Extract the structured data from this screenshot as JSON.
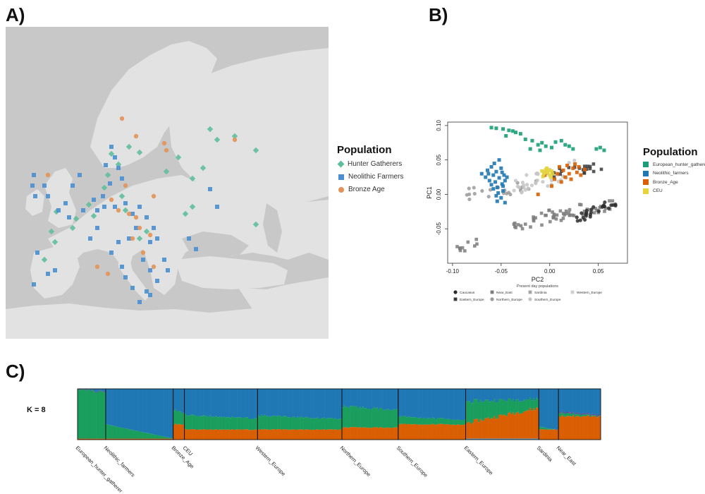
{
  "panels": {
    "a_label": "A)",
    "b_label": "B)",
    "c_label": "C)"
  },
  "map": {
    "legend_title": "Population",
    "legend": [
      {
        "name": "Hunter Gatherers",
        "color": "#5fbf9b",
        "shape": "diamond"
      },
      {
        "name": "Neolithic Farmers",
        "color": "#4a8fd1",
        "shape": "square"
      },
      {
        "name": "Bronze Age",
        "color": "#e39358",
        "shape": "circle"
      }
    ],
    "colors": {
      "sea": "#c8c8c8",
      "land": "#e2e2e2"
    }
  },
  "chart_data": [
    {
      "type": "scatter",
      "title": "",
      "xlabel": "PC2",
      "xsublabel": "Present day populations",
      "ylabel": "PC1",
      "xlim": [
        -0.105,
        0.08
      ],
      "ylim": [
        -0.1,
        0.105
      ],
      "xticks": [
        -0.1,
        -0.05,
        0.0,
        0.05
      ],
      "xtick_labels": [
        "-0.10",
        "-0.05",
        "0.00",
        "0.05"
      ],
      "yticks": [
        -0.05,
        0.0,
        0.05,
        0.1
      ],
      "ytick_labels": [
        "-0.05",
        "0.00",
        "0.05",
        "0.10"
      ],
      "legend_title": "Population",
      "legend_position": "right",
      "series": [
        {
          "name": "European_hunter_gatherers",
          "color": "#1a9e77",
          "points": [
            [
              -0.06,
              0.097
            ],
            [
              -0.055,
              0.096
            ],
            [
              -0.048,
              0.095
            ],
            [
              -0.042,
              0.093
            ],
            [
              -0.038,
              0.092
            ],
            [
              -0.035,
              0.09
            ],
            [
              -0.03,
              0.088
            ],
            [
              -0.045,
              0.085
            ],
            [
              -0.025,
              0.08
            ],
            [
              -0.018,
              0.078
            ],
            [
              -0.012,
              0.072
            ],
            [
              -0.008,
              0.075
            ],
            [
              -0.004,
              0.07
            ],
            [
              0.002,
              0.068
            ],
            [
              0.006,
              0.076
            ],
            [
              0.012,
              0.078
            ],
            [
              0.016,
              0.072
            ],
            [
              0.02,
              0.07
            ],
            [
              0.024,
              0.066
            ],
            [
              0.048,
              0.066
            ],
            [
              0.052,
              0.068
            ],
            [
              0.056,
              0.064
            ],
            [
              -0.02,
              0.066
            ],
            [
              -0.01,
              0.064
            ]
          ]
        },
        {
          "name": "Neolithic_farmers",
          "color": "#1f78b4",
          "points": [
            [
              -0.07,
              0.03
            ],
            [
              -0.066,
              0.025
            ],
            [
              -0.064,
              0.035
            ],
            [
              -0.062,
              0.02
            ],
            [
              -0.06,
              0.04
            ],
            [
              -0.058,
              0.028
            ],
            [
              -0.056,
              0.018
            ],
            [
              -0.055,
              0.033
            ],
            [
              -0.054,
              0.01
            ],
            [
              -0.052,
              0.024
            ],
            [
              -0.05,
              0.038
            ],
            [
              -0.049,
              0.015
            ],
            [
              -0.048,
              0.005
            ],
            [
              -0.047,
              0.028
            ],
            [
              -0.046,
              0.02
            ],
            [
              -0.058,
              0.008
            ],
            [
              -0.06,
              0.014
            ],
            [
              -0.053,
              0.002
            ],
            [
              -0.05,
              -0.005
            ],
            [
              -0.054,
              -0.01
            ],
            [
              -0.046,
              -0.012
            ],
            [
              -0.057,
              0.045
            ],
            [
              -0.052,
              0.05
            ],
            [
              -0.063,
              0.03
            ],
            [
              -0.049,
              0.032
            ],
            [
              -0.055,
              -0.002
            ],
            [
              -0.048,
              0.012
            ],
            [
              -0.044,
              0.025
            ]
          ]
        },
        {
          "name": "Bronze_Age",
          "color": "#d95f02",
          "points": [
            [
              0.01,
              0.04
            ],
            [
              0.014,
              0.035
            ],
            [
              0.018,
              0.042
            ],
            [
              0.02,
              0.03
            ],
            [
              0.024,
              0.038
            ],
            [
              0.028,
              0.032
            ],
            [
              0.03,
              0.04
            ],
            [
              0.032,
              0.028
            ],
            [
              0.016,
              0.025
            ],
            [
              0.022,
              0.022
            ],
            [
              0.008,
              0.03
            ],
            [
              0.012,
              0.018
            ],
            [
              0.005,
              0.022
            ],
            [
              0.036,
              0.036
            ],
            [
              0.026,
              0.044
            ],
            [
              -0.005,
              0.028
            ],
            [
              -0.012,
              0.0
            ],
            [
              0.002,
              0.012
            ]
          ]
        },
        {
          "name": "CEU",
          "color": "#e6d43a",
          "points": [
            [
              -0.008,
              0.034
            ],
            [
              -0.006,
              0.03
            ],
            [
              -0.004,
              0.036
            ],
            [
              -0.002,
              0.032
            ],
            [
              0.0,
              0.028
            ],
            [
              0.002,
              0.034
            ],
            [
              -0.007,
              0.026
            ],
            [
              -0.003,
              0.038
            ],
            [
              0.001,
              0.025
            ],
            [
              -0.005,
              0.032
            ],
            [
              0.003,
              0.03
            ],
            [
              -0.001,
              0.035
            ]
          ]
        }
      ],
      "reference": [
        {
          "name": "Caucasus",
          "color": "#2b2b2b",
          "shape": "circle"
        },
        {
          "name": "Eastern_Europe",
          "color": "#3a3a3a",
          "shape": "square"
        },
        {
          "name": "Near_East",
          "color": "#7d7d7d",
          "shape": "square"
        },
        {
          "name": "Northern_Europe",
          "color": "#9a9a9a",
          "shape": "circle"
        },
        {
          "name": "Sardinia",
          "color": "#a5a5a5",
          "shape": "square"
        },
        {
          "name": "Southern_Europe",
          "color": "#c4c4c4",
          "shape": "circle"
        },
        {
          "name": "Western_Europe",
          "color": "#cfcfcf",
          "shape": "square"
        }
      ]
    },
    {
      "type": "bar",
      "title": "",
      "k_label": "K = 8",
      "groups": [
        {
          "name": "European_hunter_gatherer",
          "width": 0.1
        },
        {
          "name": "Neolithic_farmers",
          "width": 0.24
        },
        {
          "name": "Bronze_Age",
          "width": 0.04
        },
        {
          "name": "CEU",
          "width": 0.26
        },
        {
          "name": "Western_Europe",
          "width": 0.3
        },
        {
          "name": "Northern_Europe",
          "width": 0.2
        },
        {
          "name": "Southern_Europe",
          "width": 0.24
        },
        {
          "name": "Eastern_Europe",
          "width": 0.26
        },
        {
          "name": "Sardinia",
          "width": 0.07
        },
        {
          "name": "Near_East",
          "width": 0.15
        }
      ],
      "components": [
        "blue",
        "green",
        "orange",
        "lightblue",
        "purple"
      ],
      "component_colors": [
        "#1f78b4",
        "#1a9e5e",
        "#d95f02",
        "#4fa3e0",
        "#6a3d9a"
      ],
      "group_proportions": [
        [
          0.02,
          0.95,
          0.02,
          0.0,
          0.01
        ],
        [
          0.8,
          0.18,
          0.02,
          0.0,
          0.0
        ],
        [
          0.45,
          0.25,
          0.3,
          0.0,
          0.0
        ],
        [
          0.55,
          0.25,
          0.2,
          0.0,
          0.0
        ],
        [
          0.56,
          0.24,
          0.2,
          0.0,
          0.0
        ],
        [
          0.38,
          0.38,
          0.24,
          0.0,
          0.0
        ],
        [
          0.58,
          0.12,
          0.3,
          0.0,
          0.0
        ],
        [
          0.22,
          0.3,
          0.46,
          0.02,
          0.0
        ],
        [
          0.78,
          0.02,
          0.2,
          0.0,
          0.0
        ],
        [
          0.48,
          0.04,
          0.46,
          0.0,
          0.02
        ]
      ]
    }
  ]
}
